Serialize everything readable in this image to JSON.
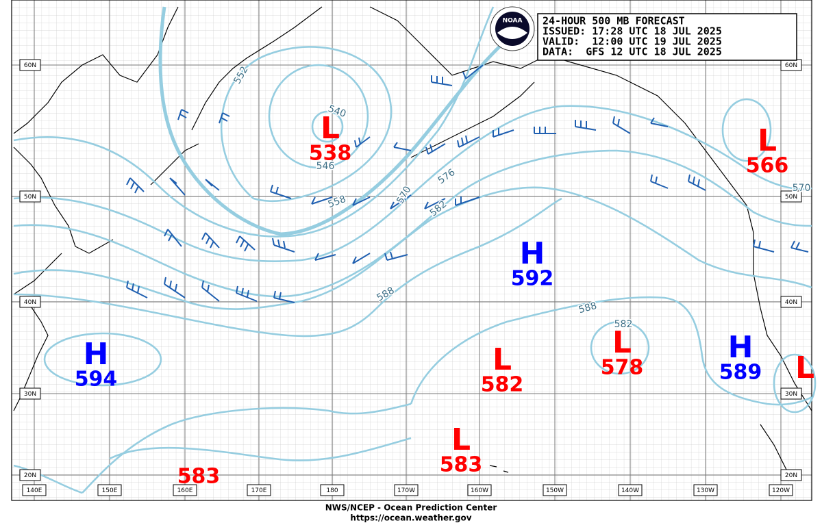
{
  "header": {
    "lines": [
      "24-HOUR 500 MB FORECAST",
      "ISSUED: 17:28 UTC 18 JUL 2025",
      "VALID:  12:00 UTC 19 JUL 2025",
      "DATA:  GFS 12 UTC 18 JUL 2025"
    ]
  },
  "logo": {
    "label": "NOAA"
  },
  "grid": {
    "lat_labels": [
      "60N",
      "50N",
      "40N",
      "30N",
      "20N"
    ],
    "lon_labels": [
      "140E",
      "150E",
      "160E",
      "170E",
      "180",
      "170W",
      "160W",
      "150W",
      "140W",
      "130W",
      "120W"
    ]
  },
  "centers": [
    {
      "symbol": "L",
      "value": 538
    },
    {
      "symbol": "L",
      "value": 566
    },
    {
      "symbol": "H",
      "value": 592
    },
    {
      "symbol": "H",
      "value": 594
    },
    {
      "symbol": "L",
      "value": 582
    },
    {
      "symbol": "L",
      "value": 578
    },
    {
      "symbol": "H",
      "value": 589
    },
    {
      "symbol": "L",
      "value": 583
    },
    {
      "symbol": "L",
      "value": 583
    },
    {
      "symbol": "L"
    }
  ],
  "contour_labels": [
    552,
    540,
    546,
    558,
    570,
    576,
    582,
    588,
    588,
    582,
    570
  ],
  "footer": {
    "lines": [
      "NWS/NCEP - Ocean Prediction Center",
      "https://ocean.weather.gov"
    ]
  }
}
